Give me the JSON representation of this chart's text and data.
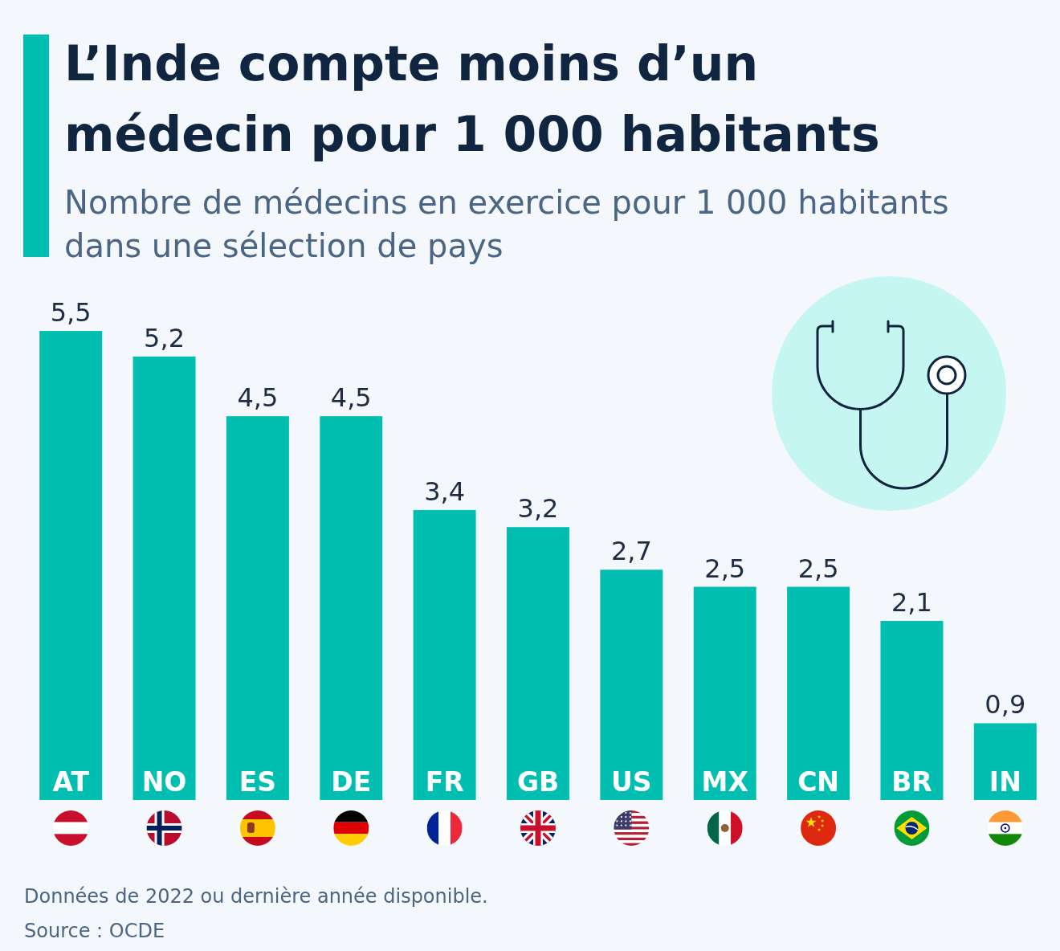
{
  "chart_data": {
    "type": "bar",
    "title": "L’Inde compte moins d’un médecin pour 1 000 habitants",
    "subtitle": "Nombre de médecins en exercice pour 1 000 habitants dans une sélection de pays",
    "categories": [
      "AT",
      "NO",
      "ES",
      "DE",
      "FR",
      "GB",
      "US",
      "MX",
      "CN",
      "BR",
      "IN"
    ],
    "values": [
      5.5,
      5.2,
      4.5,
      4.5,
      3.4,
      3.2,
      2.7,
      2.5,
      2.5,
      2.1,
      0.9
    ],
    "value_labels": [
      "5,5",
      "5,2",
      "4,5",
      "4,5",
      "3,4",
      "3,2",
      "2,7",
      "2,5",
      "2,5",
      "2,1",
      "0,9"
    ],
    "color": "#00bfb0",
    "annotations": [
      "Données de 2022 ou dernière année disponible.",
      "Source : OCDE"
    ]
  }
}
